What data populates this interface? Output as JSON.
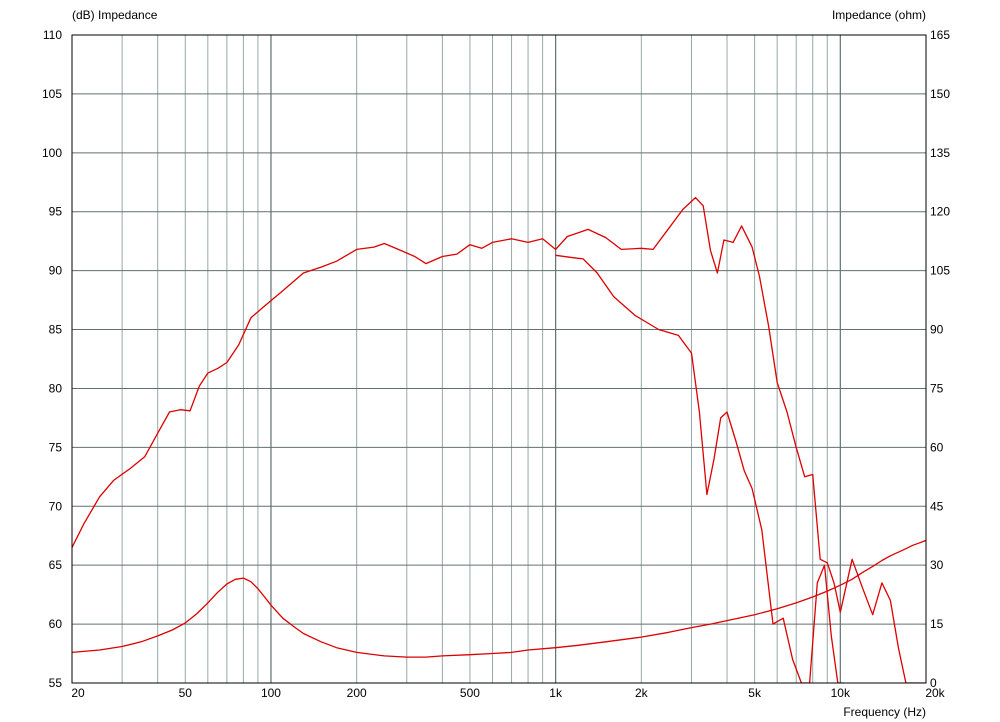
{
  "chart_data": {
    "type": "line",
    "title": "",
    "left_axis_label": "(dB)  Impedance",
    "right_axis_label": "Impedance  (ohm)",
    "xlabel": "Frequency  (Hz)",
    "x_scale": "log",
    "xlim": [
      20,
      20000
    ],
    "ylim_left": [
      55,
      110
    ],
    "ylim_right": [
      0,
      165
    ],
    "y_ticks_left": [
      "55",
      "60",
      "65",
      "70",
      "75",
      "80",
      "85",
      "90",
      "95",
      "100",
      "105",
      "110"
    ],
    "y_ticks_right": [
      "0",
      "15",
      "30",
      "45",
      "60",
      "75",
      "90",
      "105",
      "120",
      "135",
      "150",
      "165"
    ],
    "x_ticks": [
      {
        "value": 20,
        "label": "20"
      },
      {
        "value": 50,
        "label": "50"
      },
      {
        "value": 100,
        "label": "100"
      },
      {
        "value": 200,
        "label": "200"
      },
      {
        "value": 500,
        "label": "500"
      },
      {
        "value": 1000,
        "label": "1k"
      },
      {
        "value": 2000,
        "label": "2k"
      },
      {
        "value": 5000,
        "label": "5k"
      },
      {
        "value": 10000,
        "label": "10k"
      },
      {
        "value": 20000,
        "label": "20k"
      }
    ],
    "grid": true,
    "legend": "none",
    "colors": {
      "series": "#dd0000",
      "grid": "#98a8a8",
      "major_grid": "#607070",
      "frame": "#000000"
    },
    "series": [
      {
        "axis": "left",
        "x": [
          20,
          22,
          25,
          28,
          32,
          36,
          40,
          44,
          48,
          52,
          56,
          60,
          65,
          70,
          77,
          85,
          95,
          110,
          130,
          150,
          170,
          200,
          230,
          250,
          280,
          320,
          350,
          400,
          450,
          500,
          550,
          600,
          700,
          800,
          900,
          1000,
          1100,
          1300,
          1500,
          1700,
          2000,
          2200,
          2500,
          2800,
          3100,
          3300,
          3500,
          3700,
          3900,
          4200,
          4500,
          4900,
          5200,
          5600,
          6000,
          6500,
          7000,
          7500,
          8000,
          8500,
          9000,
          9500,
          10000,
          11000,
          12000,
          13000,
          14000,
          15000,
          16000,
          17000,
          18000,
          20000
        ],
        "y": [
          66.5,
          68.5,
          70.8,
          72.2,
          73.2,
          74.2,
          76.2,
          78.0,
          78.2,
          78.1,
          80.2,
          81.3,
          81.7,
          82.2,
          83.7,
          86.0,
          87.0,
          88.3,
          89.8,
          90.3,
          90.8,
          91.8,
          92.0,
          92.3,
          91.8,
          91.2,
          90.6,
          91.2,
          91.4,
          92.2,
          91.9,
          92.4,
          92.7,
          92.4,
          92.7,
          91.8,
          92.9,
          93.5,
          92.8,
          91.8,
          91.9,
          91.8,
          93.6,
          95.2,
          96.2,
          95.5,
          91.7,
          89.8,
          92.6,
          92.4,
          93.8,
          92.0,
          89.5,
          85.3,
          80.5,
          78.0,
          75.0,
          72.5,
          72.7,
          65.5,
          65.2,
          63.5,
          61.0,
          65.5,
          63.0,
          60.8,
          63.5,
          62.0,
          58.0,
          55.0,
          55.0,
          55.0
        ]
      },
      {
        "axis": "left",
        "x": [
          1000,
          1150,
          1250,
          1400,
          1600,
          1900,
          2300,
          2700,
          3000,
          3200,
          3400,
          3600,
          3800,
          4000,
          4300,
          4600,
          4900,
          5300,
          5800,
          6300,
          6800,
          7300,
          7800,
          8300,
          8800,
          9300,
          9800,
          10300
        ],
        "y": [
          91.3,
          91.1,
          91.0,
          89.8,
          87.8,
          86.2,
          85.0,
          84.5,
          83.0,
          78.0,
          71.0,
          74.0,
          77.5,
          78.0,
          75.5,
          73.0,
          71.5,
          68.0,
          60.0,
          60.5,
          57.0,
          55.0,
          55.0,
          63.5,
          65.0,
          59.0,
          55.0,
          55.0
        ]
      },
      {
        "axis": "left",
        "x": [
          20,
          25,
          30,
          35,
          40,
          45,
          50,
          55,
          60,
          65,
          70,
          75,
          80,
          85,
          90,
          95,
          100,
          110,
          120,
          130,
          150,
          170,
          200,
          250,
          300,
          350,
          400,
          500,
          600,
          700,
          800,
          1000,
          1200,
          1500,
          2000,
          2500,
          3000,
          3500,
          4000,
          5000,
          6000,
          7000,
          8000,
          9000,
          10000,
          11000,
          12000,
          13000,
          14000,
          15000,
          16000,
          17000,
          18000,
          19000,
          20000
        ],
        "y": [
          57.6,
          57.8,
          58.1,
          58.5,
          59.0,
          59.5,
          60.1,
          60.9,
          61.8,
          62.7,
          63.4,
          63.8,
          63.9,
          63.6,
          63.0,
          62.3,
          61.6,
          60.5,
          59.8,
          59.2,
          58.5,
          58.0,
          57.6,
          57.3,
          57.2,
          57.2,
          57.3,
          57.4,
          57.5,
          57.6,
          57.8,
          58.0,
          58.2,
          58.5,
          58.9,
          59.3,
          59.7,
          60.0,
          60.3,
          60.8,
          61.3,
          61.8,
          62.3,
          62.8,
          63.3,
          63.8,
          64.4,
          64.9,
          65.4,
          65.8,
          66.1,
          66.4,
          66.7,
          66.9,
          67.1
        ]
      }
    ]
  }
}
